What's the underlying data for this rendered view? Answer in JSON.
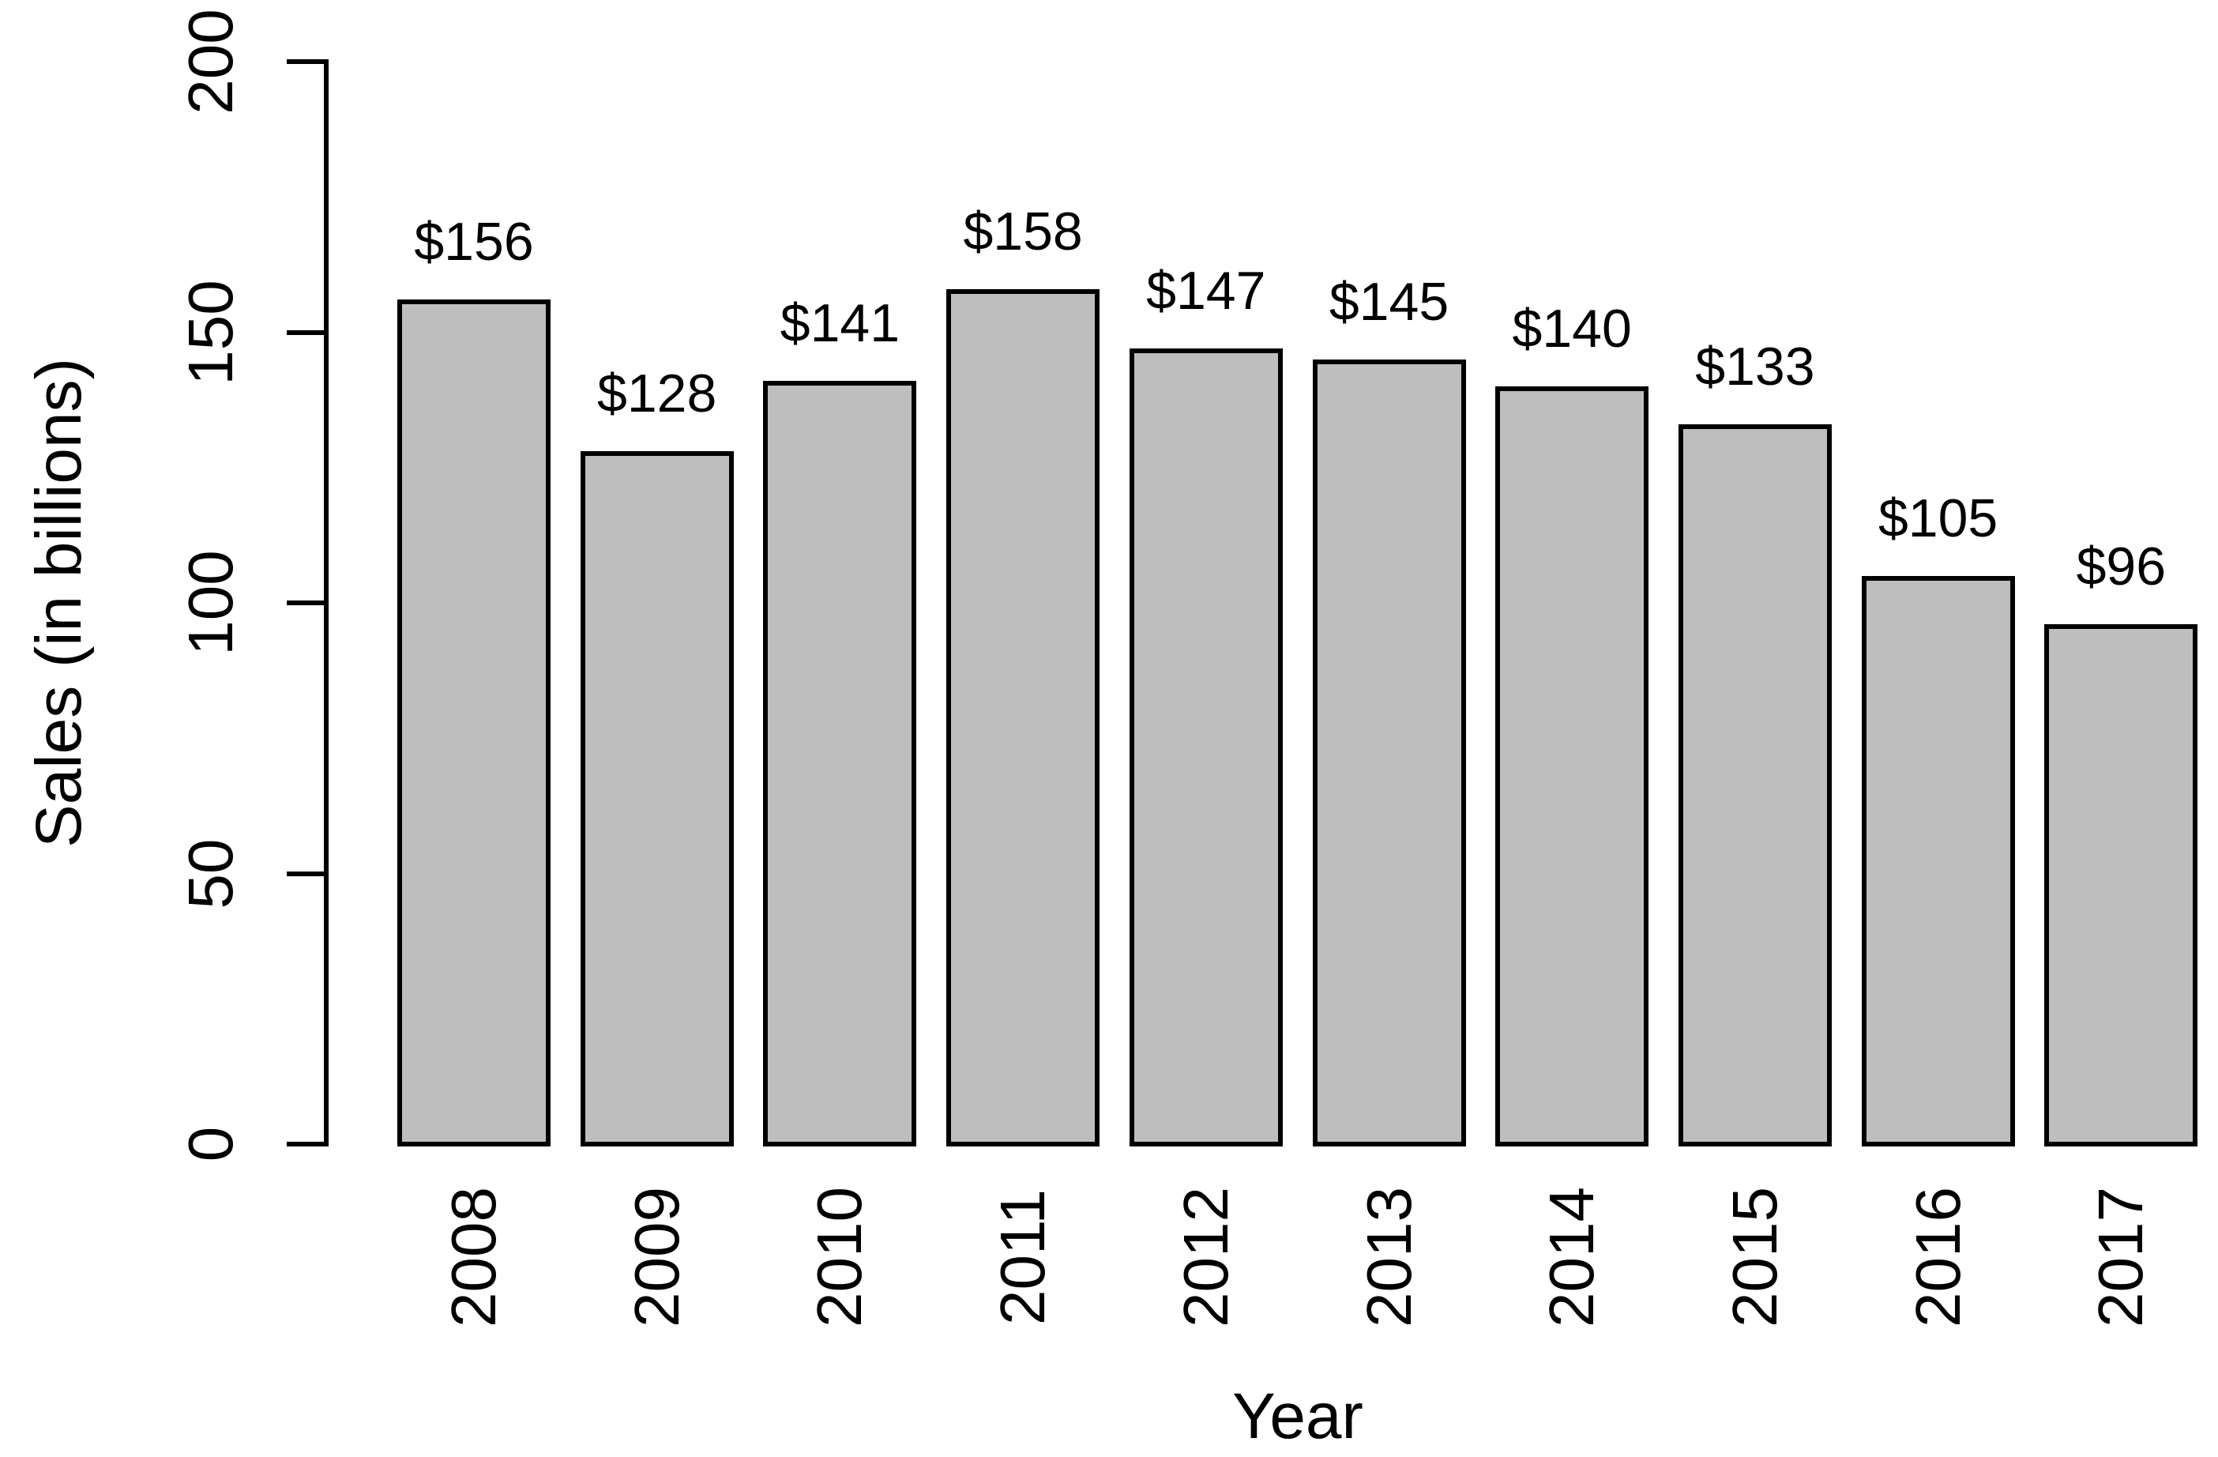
{
  "chart_data": {
    "type": "bar",
    "title": "",
    "xlabel": "Year",
    "ylabel": "Sales (in billions)",
    "categories": [
      "2008",
      "2009",
      "2010",
      "2011",
      "2012",
      "2013",
      "2014",
      "2015",
      "2016",
      "2017"
    ],
    "values": [
      156,
      128,
      141,
      158,
      147,
      145,
      140,
      133,
      105,
      96
    ],
    "bar_labels": [
      "$156",
      "$128",
      "$141",
      "$158",
      "$147",
      "$145",
      "$140",
      "$133",
      "$105",
      "$96"
    ],
    "ylim": [
      0,
      200
    ],
    "yticks": [
      0,
      50,
      100,
      150,
      200
    ],
    "ytick_labels": [
      "0",
      "50",
      "100",
      "150",
      "200"
    ],
    "grid": false,
    "legend": false,
    "bar_fill": "#BEBEBE",
    "bar_border": "#000000",
    "axis_color": "#000000",
    "text_color": "#000000",
    "background": "#FFFFFF"
  }
}
